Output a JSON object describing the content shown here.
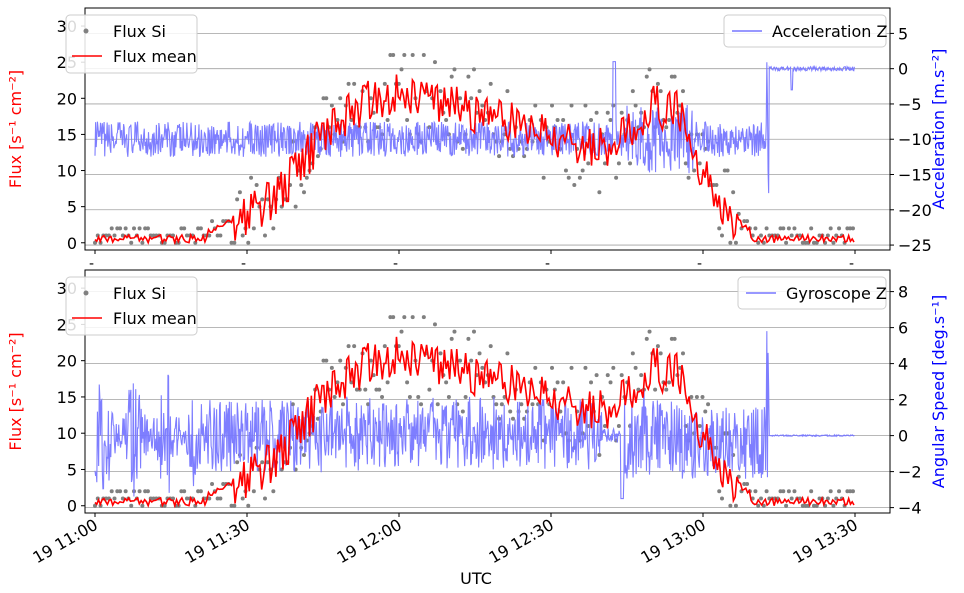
{
  "chart_data": [
    {
      "type": "scatter+line (dual axis)",
      "x_range": [
        "19 11:00",
        "19 13:30"
      ],
      "left_axis": {
        "label": "Flux [s⁻¹ cm⁻²]",
        "ylim": [
          -1,
          32.5
        ],
        "ticks": [
          0,
          5,
          10,
          15,
          20,
          25,
          30
        ],
        "tick_labels": [
          "0",
          "5",
          "10",
          "15",
          "20",
          "25",
          "30"
        ],
        "color": "#ff0000"
      },
      "right_axis": {
        "label": "Acceleration [m.s⁻²]",
        "ylim": [
          -25.7,
          8.6
        ],
        "ticks": [
          5,
          0,
          -5,
          -10,
          -15,
          -20,
          -25
        ],
        "tick_labels": [
          "5",
          "0",
          "−5",
          "−10",
          "−15",
          "−20",
          "−25"
        ],
        "color": "#0000ff"
      },
      "x_tick_labels": [
        "-",
        "-",
        "-",
        "-",
        "-",
        "-"
      ],
      "legend_left": {
        "items": [
          "Flux Si",
          "Flux mean"
        ],
        "placement": "upper left"
      },
      "legend_right": {
        "items": [
          "Acceleration Z"
        ],
        "placement": "upper right"
      },
      "grid": "horizontal lines at right-axis ticks",
      "series": [
        {
          "name": "Flux Si",
          "kind": "scatter",
          "color": "#808080"
        },
        {
          "name": "Flux mean",
          "kind": "line",
          "color": "#ff0000"
        },
        {
          "name": "Acceleration Z",
          "kind": "line",
          "color": "#7777ff"
        }
      ]
    },
    {
      "type": "scatter+line (dual axis)",
      "x_range": [
        "19 11:00",
        "19 13:30"
      ],
      "xlabel": "UTC",
      "x_tick_labels": [
        "19 11:00",
        "19 11:30",
        "19 12:00",
        "19 12:30",
        "19 13:00",
        "19 13:30"
      ],
      "left_axis": {
        "label": "Flux [s⁻¹ cm⁻²]",
        "ylim": [
          -1,
          32.5
        ],
        "ticks": [
          0,
          5,
          10,
          15,
          20,
          25,
          30
        ],
        "tick_labels": [
          "0",
          "5",
          "10",
          "15",
          "20",
          "25",
          "30"
        ],
        "color": "#ff0000"
      },
      "right_axis": {
        "label": "Angular Speed [deg.s⁻¹]",
        "ylim": [
          -4.3,
          9.2
        ],
        "ticks": [
          8,
          6,
          4,
          2,
          0,
          -2,
          -4
        ],
        "tick_labels": [
          "8",
          "6",
          "4",
          "2",
          "0",
          "−2",
          "−4"
        ],
        "color": "#0000ff"
      },
      "legend_left": {
        "items": [
          "Flux Si",
          "Flux mean"
        ],
        "placement": "upper left"
      },
      "legend_right": {
        "items": [
          "Gyroscope Z"
        ],
        "placement": "upper right"
      },
      "grid": "horizontal lines at right-axis ticks",
      "series": [
        {
          "name": "Flux Si",
          "kind": "scatter",
          "color": "#808080"
        },
        {
          "name": "Flux mean",
          "kind": "line",
          "color": "#ff0000"
        },
        {
          "name": "Gyroscope Z",
          "kind": "line",
          "color": "#7777ff"
        }
      ]
    }
  ],
  "flux_mean_profile": {
    "x_minutes": [
      0,
      5,
      10,
      15,
      20,
      25,
      30,
      35,
      40,
      45,
      50,
      55,
      60,
      65,
      70,
      75,
      80,
      85,
      90,
      95,
      100,
      105,
      110,
      115,
      120,
      125,
      130,
      135,
      140,
      145,
      150
    ],
    "y": [
      0.5,
      0.5,
      0.5,
      0.5,
      0.8,
      2.5,
      4,
      6,
      10,
      15,
      18,
      20,
      21,
      20,
      19,
      18,
      17,
      16,
      15,
      14,
      13,
      15,
      19,
      18,
      10,
      4,
      1.2,
      0.6,
      0.5,
      0.5,
      0.5
    ]
  }
}
